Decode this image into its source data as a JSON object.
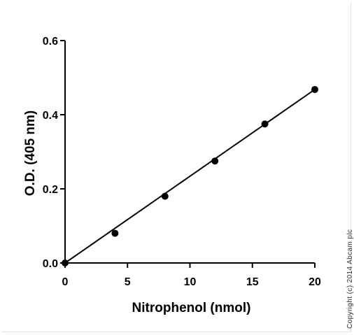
{
  "chart_data": {
    "type": "line",
    "title": "",
    "xlabel": "Nitrophenol (nmol)",
    "ylabel": "O.D. (405 nm)",
    "xlim": [
      0,
      20
    ],
    "ylim": [
      0,
      0.6
    ],
    "x_ticks": [
      "0",
      "5",
      "10",
      "15",
      "20"
    ],
    "y_ticks": [
      "0.0",
      "0.2",
      "0.4",
      "0.6"
    ],
    "grid": false,
    "legend": "none",
    "series": [
      {
        "x": [
          0,
          4,
          8,
          12,
          16,
          20
        ],
        "y": [
          0.0,
          0.08,
          0.18,
          0.275,
          0.375,
          0.468
        ],
        "marker": "circle",
        "fit_line": {
          "x": [
            0,
            20
          ],
          "y": [
            0.0,
            0.468
          ]
        }
      }
    ],
    "colors": {
      "line": "#000000",
      "marker": "#000000"
    }
  },
  "copyright": "Copyright (c) 2014 Abcam plc"
}
